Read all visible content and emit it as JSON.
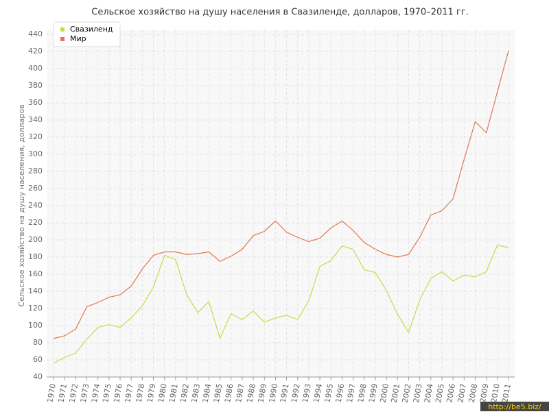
{
  "chart_data": {
    "type": "line",
    "title": "Сельское хозяйство на душу населения в Свазиленде, долларов, 1970–2011 гг.",
    "y_label": "Сельское хозяйство на душу населения, долларов",
    "watermark": "http://be5.biz/",
    "categories": [
      "1970",
      "1971",
      "1972",
      "1973",
      "1974",
      "1975",
      "1976",
      "1977",
      "1978",
      "1979",
      "1980",
      "1981",
      "1982",
      "1983",
      "1984",
      "1985",
      "1986",
      "1987",
      "1988",
      "1989",
      "1990",
      "1991",
      "1992",
      "1993",
      "1994",
      "1995",
      "1996",
      "1997",
      "1998",
      "1999",
      "2000",
      "2001",
      "2002",
      "2003",
      "2004",
      "2005",
      "2006",
      "2007",
      "2008",
      "2009",
      "2010",
      "2011"
    ],
    "series": [
      {
        "name": "Свазиленд",
        "color": "#c5dc4a",
        "values": [
          56,
          63,
          68,
          84,
          98,
          101,
          98,
          109,
          123,
          145,
          182,
          177,
          136,
          115,
          128,
          85,
          114,
          107,
          117,
          104,
          109,
          112,
          107,
          129,
          169,
          176,
          193,
          189,
          165,
          162,
          141,
          113,
          92,
          130,
          155,
          163,
          152,
          159,
          157,
          163,
          194,
          191
        ]
      },
      {
        "name": "Мир",
        "color": "#e0764f",
        "values": [
          85,
          88,
          96,
          122,
          127,
          133,
          136,
          146,
          166,
          182,
          186,
          186,
          183,
          184,
          186,
          175,
          181,
          189,
          205,
          210,
          222,
          209,
          203,
          198,
          202,
          214,
          222,
          211,
          197,
          189,
          183,
          180,
          183,
          203,
          229,
          234,
          248,
          294,
          338,
          325,
          373,
          421
        ]
      }
    ],
    "ylim": [
      40,
      440
    ],
    "yticks": [
      40,
      60,
      80,
      100,
      120,
      140,
      160,
      180,
      200,
      220,
      240,
      260,
      280,
      300,
      320,
      340,
      360,
      380,
      400,
      420,
      440
    ],
    "grid": true,
    "legend": "top-left"
  }
}
